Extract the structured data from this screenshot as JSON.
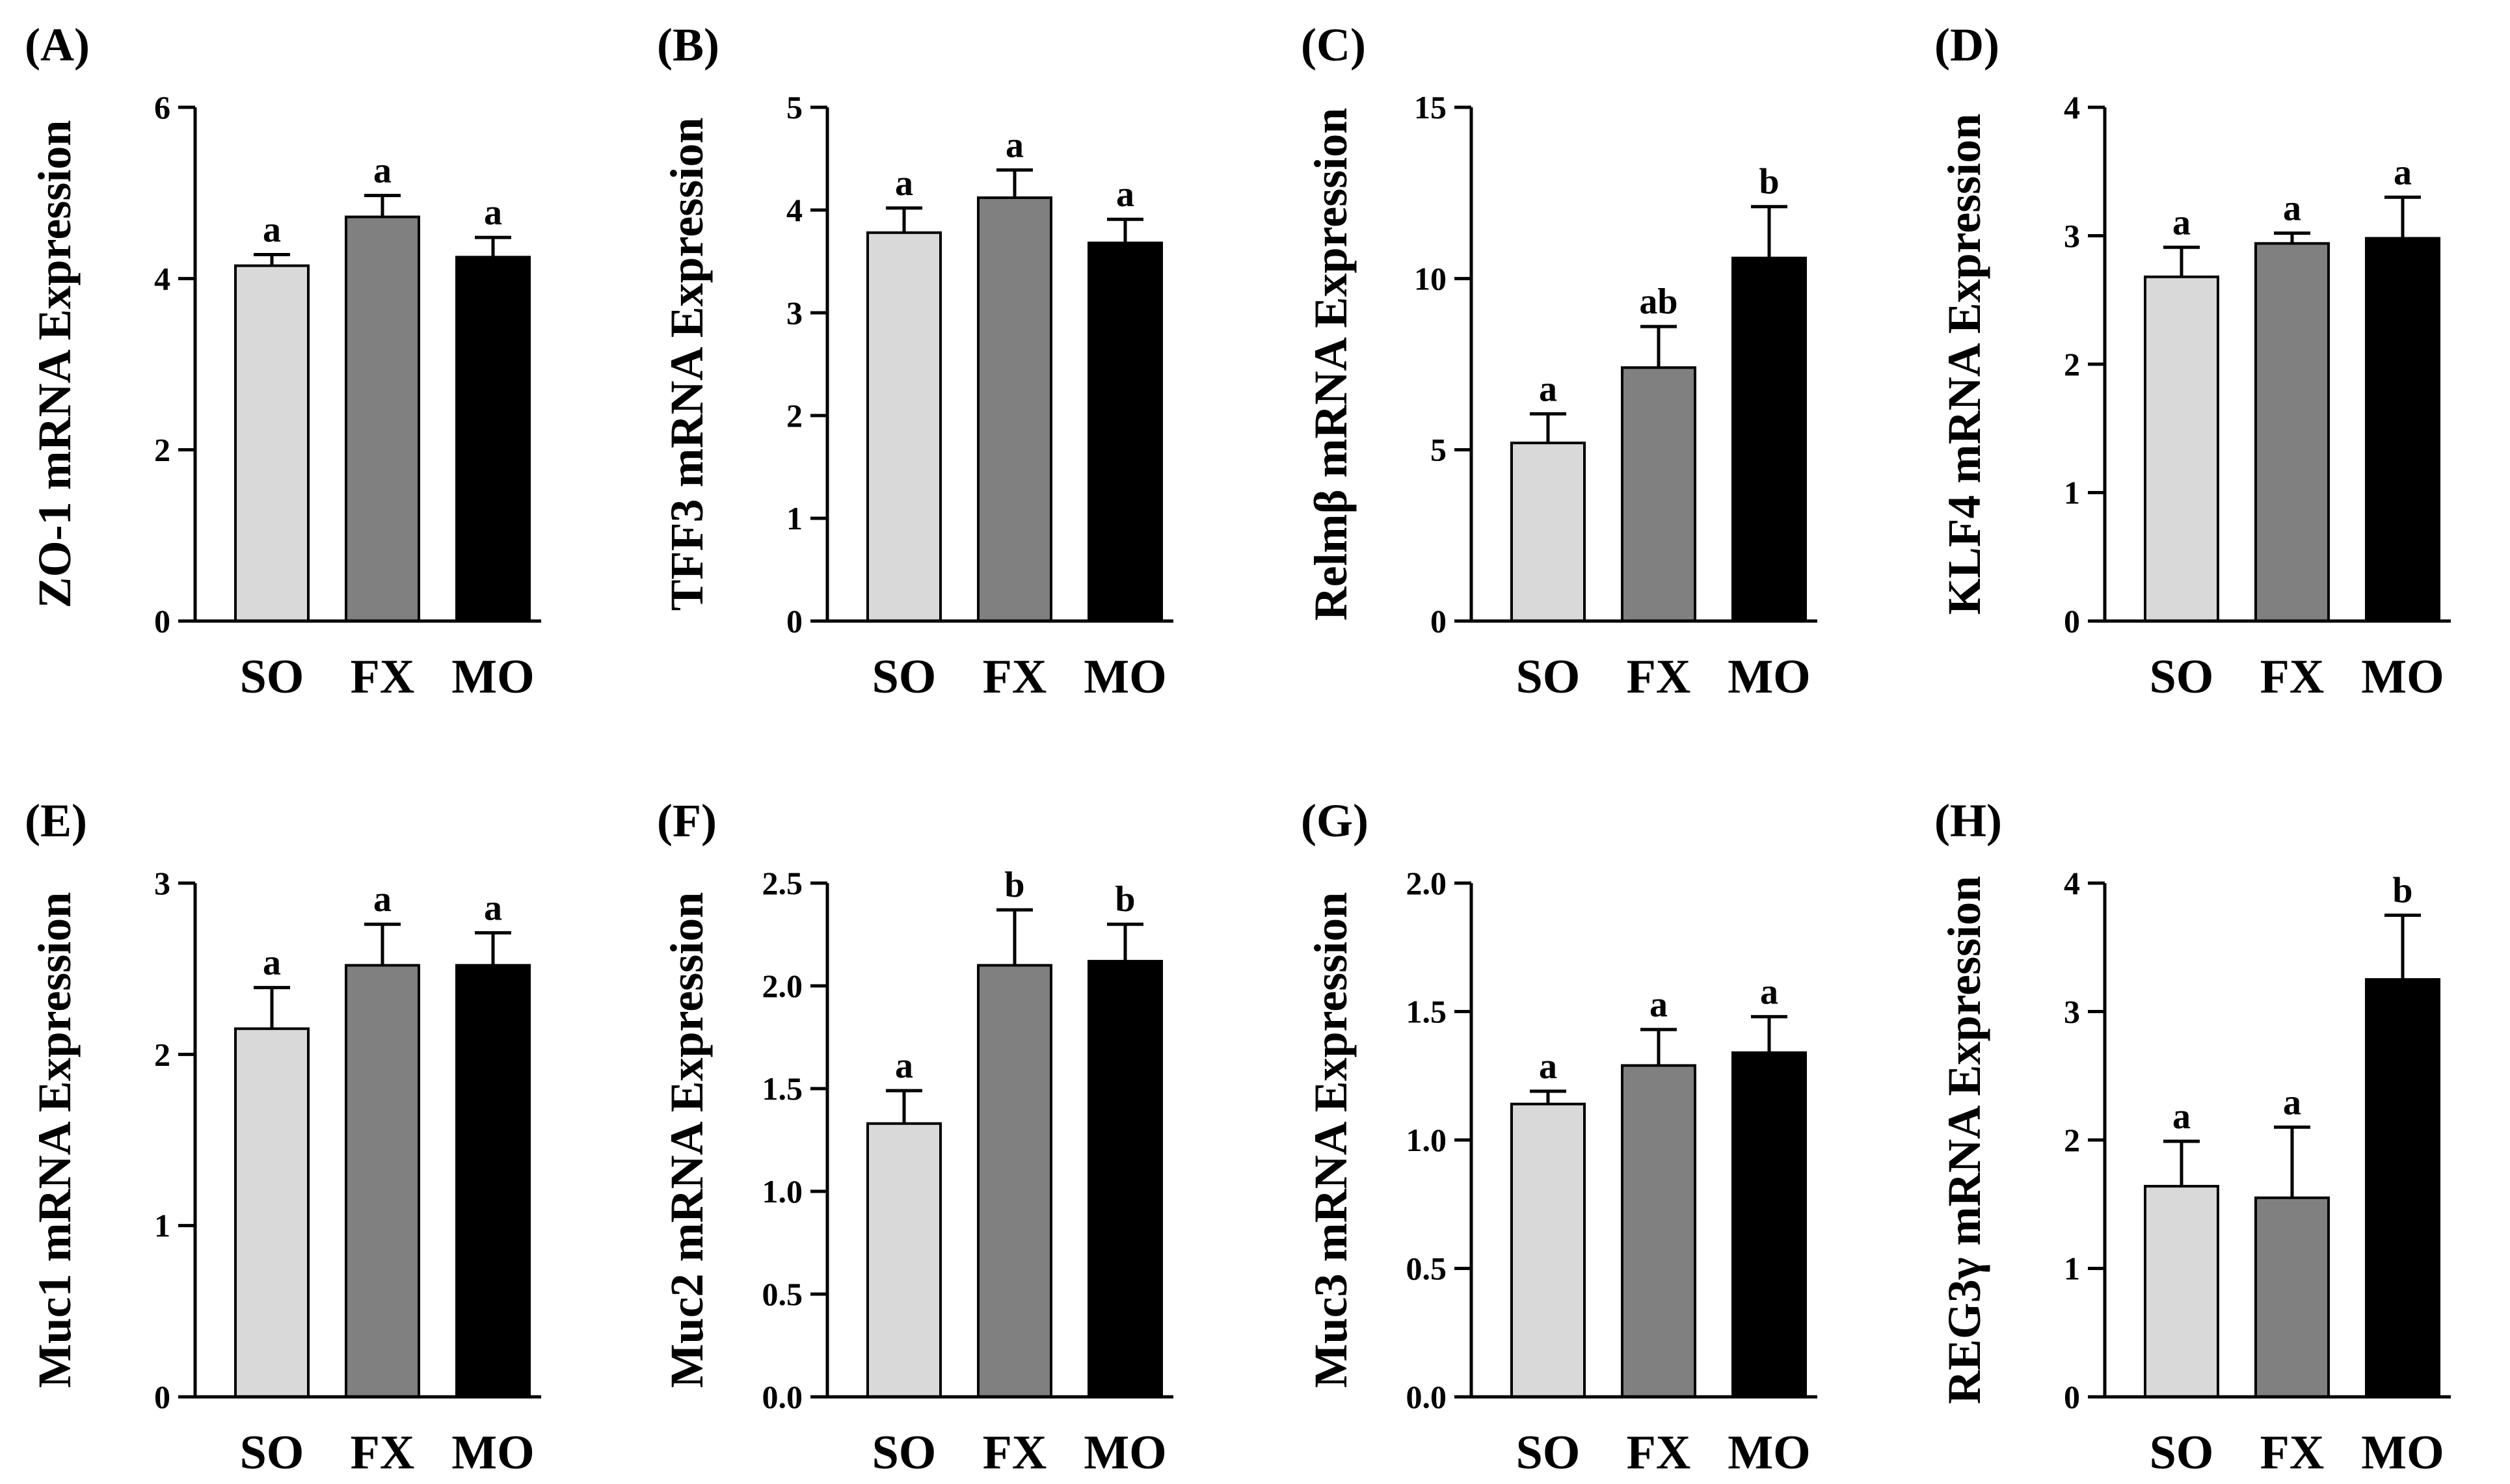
{
  "figure": {
    "categories": [
      "SO",
      "FX",
      "MO"
    ],
    "bar_colors": [
      "#d9d9d9",
      "#808080",
      "#000000"
    ]
  },
  "chart_data": [
    {
      "type": "bar",
      "panel_label": "(A)",
      "title": "",
      "xlabel": "",
      "ylabel": "ZO-1 mRNA Expression",
      "categories": [
        "SO",
        "FX",
        "MO"
      ],
      "values": [
        4.15,
        4.72,
        4.25
      ],
      "errors": [
        0.13,
        0.25,
        0.23
      ],
      "significance": [
        "a",
        "a",
        "a"
      ],
      "ylim": [
        0,
        6
      ],
      "yticks": [
        "0",
        "2",
        "4",
        "6"
      ]
    },
    {
      "type": "bar",
      "panel_label": "(B)",
      "title": "",
      "xlabel": "",
      "ylabel": "TFF3 mRNA Expression",
      "categories": [
        "SO",
        "FX",
        "MO"
      ],
      "values": [
        3.78,
        4.12,
        3.68
      ],
      "errors": [
        0.24,
        0.27,
        0.23
      ],
      "significance": [
        "a",
        "a",
        "a"
      ],
      "ylim": [
        0,
        5
      ],
      "yticks": [
        "0",
        "1",
        "2",
        "3",
        "4",
        "5"
      ]
    },
    {
      "type": "bar",
      "panel_label": "(C)",
      "title": "",
      "xlabel": "",
      "ylabel": "Relmβ mRNA Expression",
      "categories": [
        "SO",
        "FX",
        "MO"
      ],
      "values": [
        5.2,
        7.4,
        10.6
      ],
      "errors": [
        0.85,
        1.2,
        1.5
      ],
      "significance": [
        "a",
        "ab",
        "b"
      ],
      "ylim": [
        0,
        15
      ],
      "yticks": [
        "0",
        "5",
        "10",
        "15"
      ]
    },
    {
      "type": "bar",
      "panel_label": "(D)",
      "title": "",
      "xlabel": "",
      "ylabel": "KLF4 mRNA Expression",
      "categories": [
        "SO",
        "FX",
        "MO"
      ],
      "values": [
        2.68,
        2.94,
        2.98
      ],
      "errors": [
        0.23,
        0.08,
        0.32
      ],
      "significance": [
        "a",
        "a",
        "a"
      ],
      "ylim": [
        0,
        4
      ],
      "yticks": [
        "0",
        "1",
        "2",
        "3",
        "4"
      ]
    },
    {
      "type": "bar",
      "panel_label": "(E)",
      "title": "",
      "xlabel": "",
      "ylabel": "Muc1 mRNA Expression",
      "categories": [
        "SO",
        "FX",
        "MO"
      ],
      "values": [
        2.15,
        2.52,
        2.52
      ],
      "errors": [
        0.24,
        0.24,
        0.19
      ],
      "significance": [
        "a",
        "a",
        "a"
      ],
      "ylim": [
        0,
        3
      ],
      "yticks": [
        "0",
        "1",
        "2",
        "3"
      ]
    },
    {
      "type": "bar",
      "panel_label": "(F)",
      "title": "",
      "xlabel": "",
      "ylabel": "Muc2 mRNA Expression",
      "categories": [
        "SO",
        "FX",
        "MO"
      ],
      "values": [
        1.33,
        2.1,
        2.12
      ],
      "errors": [
        0.16,
        0.27,
        0.18
      ],
      "significance": [
        "a",
        "b",
        "b"
      ],
      "ylim": [
        0,
        2.5
      ],
      "yticks": [
        "0.0",
        "0.5",
        "1.0",
        "1.5",
        "2.0",
        "2.5"
      ]
    },
    {
      "type": "bar",
      "panel_label": "(G)",
      "title": "",
      "xlabel": "",
      "ylabel": "Muc3 mRNA Expression",
      "categories": [
        "SO",
        "FX",
        "MO"
      ],
      "values": [
        1.14,
        1.29,
        1.34
      ],
      "errors": [
        0.05,
        0.14,
        0.14
      ],
      "significance": [
        "a",
        "a",
        "a"
      ],
      "ylim": [
        0,
        2
      ],
      "yticks": [
        "0.0",
        "0.5",
        "1.0",
        "1.5",
        "2.0"
      ]
    },
    {
      "type": "bar",
      "panel_label": "(H)",
      "title": "",
      "xlabel": "",
      "ylabel": "REG3γ mRNA Expression",
      "categories": [
        "SO",
        "FX",
        "MO"
      ],
      "values": [
        1.64,
        1.55,
        3.25
      ],
      "errors": [
        0.35,
        0.55,
        0.5
      ],
      "significance": [
        "a",
        "a",
        "b"
      ],
      "ylim": [
        0,
        4
      ],
      "yticks": [
        "0",
        "1",
        "2",
        "3",
        "4"
      ]
    }
  ]
}
